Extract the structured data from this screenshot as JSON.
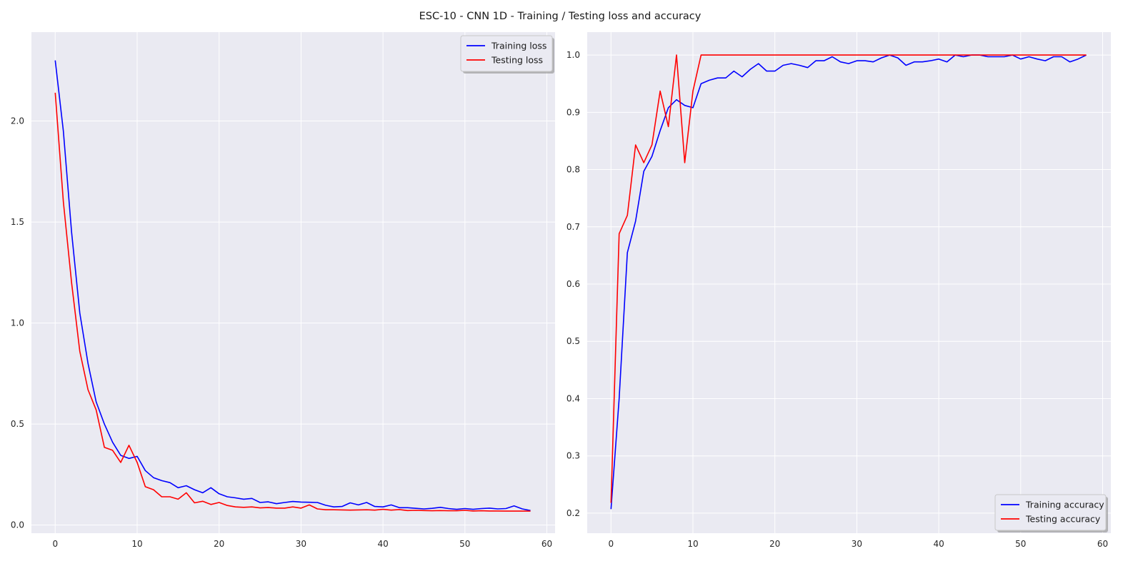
{
  "figure": {
    "suptitle": "ESC-10 - CNN 1D - Training / Testing loss and accuracy",
    "background": "#ffffff",
    "axes_facecolor": "#eaeaf2",
    "grid_color": "#ffffff"
  },
  "chart_data": [
    {
      "type": "line",
      "title": "",
      "xlabel": "",
      "ylabel": "",
      "grid": true,
      "xlim": [
        -2.9,
        61
      ],
      "ylim": [
        -0.04,
        2.44
      ],
      "xticks": [
        0,
        10,
        20,
        30,
        40,
        50,
        60
      ],
      "xtick_labels": [
        "0",
        "10",
        "20",
        "30",
        "40",
        "50",
        "60"
      ],
      "yticks": [
        0.0,
        0.5,
        1.0,
        1.5,
        2.0
      ],
      "ytick_labels": [
        "0.0",
        "0.5",
        "1.0",
        "1.5",
        "2.0"
      ],
      "legend": {
        "placement": "top-right"
      },
      "series": [
        {
          "name": "Training loss",
          "color": "#0000ff",
          "values": [
            2.3,
            1.95,
            1.45,
            1.05,
            0.8,
            0.61,
            0.5,
            0.41,
            0.345,
            0.33,
            0.34,
            0.27,
            0.235,
            0.22,
            0.21,
            0.185,
            0.195,
            0.175,
            0.16,
            0.185,
            0.155,
            0.14,
            0.135,
            0.128,
            0.132,
            0.112,
            0.115,
            0.106,
            0.112,
            0.117,
            0.114,
            0.113,
            0.112,
            0.098,
            0.09,
            0.092,
            0.11,
            0.1,
            0.112,
            0.092,
            0.09,
            0.1,
            0.086,
            0.086,
            0.083,
            0.08,
            0.083,
            0.088,
            0.082,
            0.078,
            0.082,
            0.078,
            0.082,
            0.084,
            0.08,
            0.082,
            0.095,
            0.08,
            0.072
          ]
        },
        {
          "name": "Testing loss",
          "color": "#ff0000",
          "values": [
            2.14,
            1.6,
            1.2,
            0.86,
            0.67,
            0.57,
            0.385,
            0.37,
            0.31,
            0.395,
            0.31,
            0.19,
            0.175,
            0.14,
            0.14,
            0.128,
            0.16,
            0.11,
            0.118,
            0.102,
            0.112,
            0.097,
            0.09,
            0.088,
            0.09,
            0.085,
            0.087,
            0.084,
            0.084,
            0.09,
            0.084,
            0.1,
            0.08,
            0.076,
            0.076,
            0.075,
            0.074,
            0.075,
            0.076,
            0.074,
            0.078,
            0.074,
            0.077,
            0.072,
            0.073,
            0.072,
            0.071,
            0.072,
            0.071,
            0.071,
            0.073,
            0.07,
            0.071,
            0.07,
            0.07,
            0.069,
            0.069,
            0.069,
            0.069
          ]
        }
      ]
    },
    {
      "type": "line",
      "title": "",
      "xlabel": "",
      "ylabel": "",
      "grid": true,
      "xlim": [
        -2.9,
        61
      ],
      "ylim": [
        0.165,
        1.04
      ],
      "xticks": [
        0,
        10,
        20,
        30,
        40,
        50,
        60
      ],
      "xtick_labels": [
        "0",
        "10",
        "20",
        "30",
        "40",
        "50",
        "60"
      ],
      "yticks": [
        0.2,
        0.3,
        0.4,
        0.5,
        0.6,
        0.7,
        0.8,
        0.9,
        1.0
      ],
      "ytick_labels": [
        "0.2",
        "0.3",
        "0.4",
        "0.5",
        "0.6",
        "0.7",
        "0.8",
        "0.9",
        "1.0"
      ],
      "legend": {
        "placement": "bottom-right"
      },
      "series": [
        {
          "name": "Training accuracy",
          "color": "#0000ff",
          "values": [
            0.207,
            0.4,
            0.655,
            0.71,
            0.797,
            0.823,
            0.868,
            0.908,
            0.922,
            0.912,
            0.908,
            0.95,
            0.956,
            0.96,
            0.96,
            0.972,
            0.962,
            0.975,
            0.985,
            0.972,
            0.972,
            0.982,
            0.985,
            0.982,
            0.978,
            0.99,
            0.99,
            0.997,
            0.988,
            0.985,
            0.99,
            0.99,
            0.988,
            0.995,
            1.0,
            0.995,
            0.982,
            0.988,
            0.988,
            0.99,
            0.993,
            0.988,
            1.0,
            0.997,
            1.0,
            1.0,
            0.997,
            0.997,
            0.997,
            1.0,
            0.993,
            0.997,
            0.993,
            0.99,
            0.997,
            0.997,
            0.988,
            0.993,
            1.0
          ]
        },
        {
          "name": "Testing accuracy",
          "color": "#ff0000",
          "values": [
            0.218,
            0.688,
            0.72,
            0.843,
            0.812,
            0.843,
            0.937,
            0.875,
            1.0,
            0.812,
            0.937,
            1.0,
            1.0,
            1.0,
            1.0,
            1.0,
            1.0,
            1.0,
            1.0,
            1.0,
            1.0,
            1.0,
            1.0,
            1.0,
            1.0,
            1.0,
            1.0,
            1.0,
            1.0,
            1.0,
            1.0,
            1.0,
            1.0,
            1.0,
            1.0,
            1.0,
            1.0,
            1.0,
            1.0,
            1.0,
            1.0,
            1.0,
            1.0,
            1.0,
            1.0,
            1.0,
            1.0,
            1.0,
            1.0,
            1.0,
            1.0,
            1.0,
            1.0,
            1.0,
            1.0,
            1.0,
            1.0,
            1.0,
            1.0
          ]
        }
      ]
    }
  ]
}
